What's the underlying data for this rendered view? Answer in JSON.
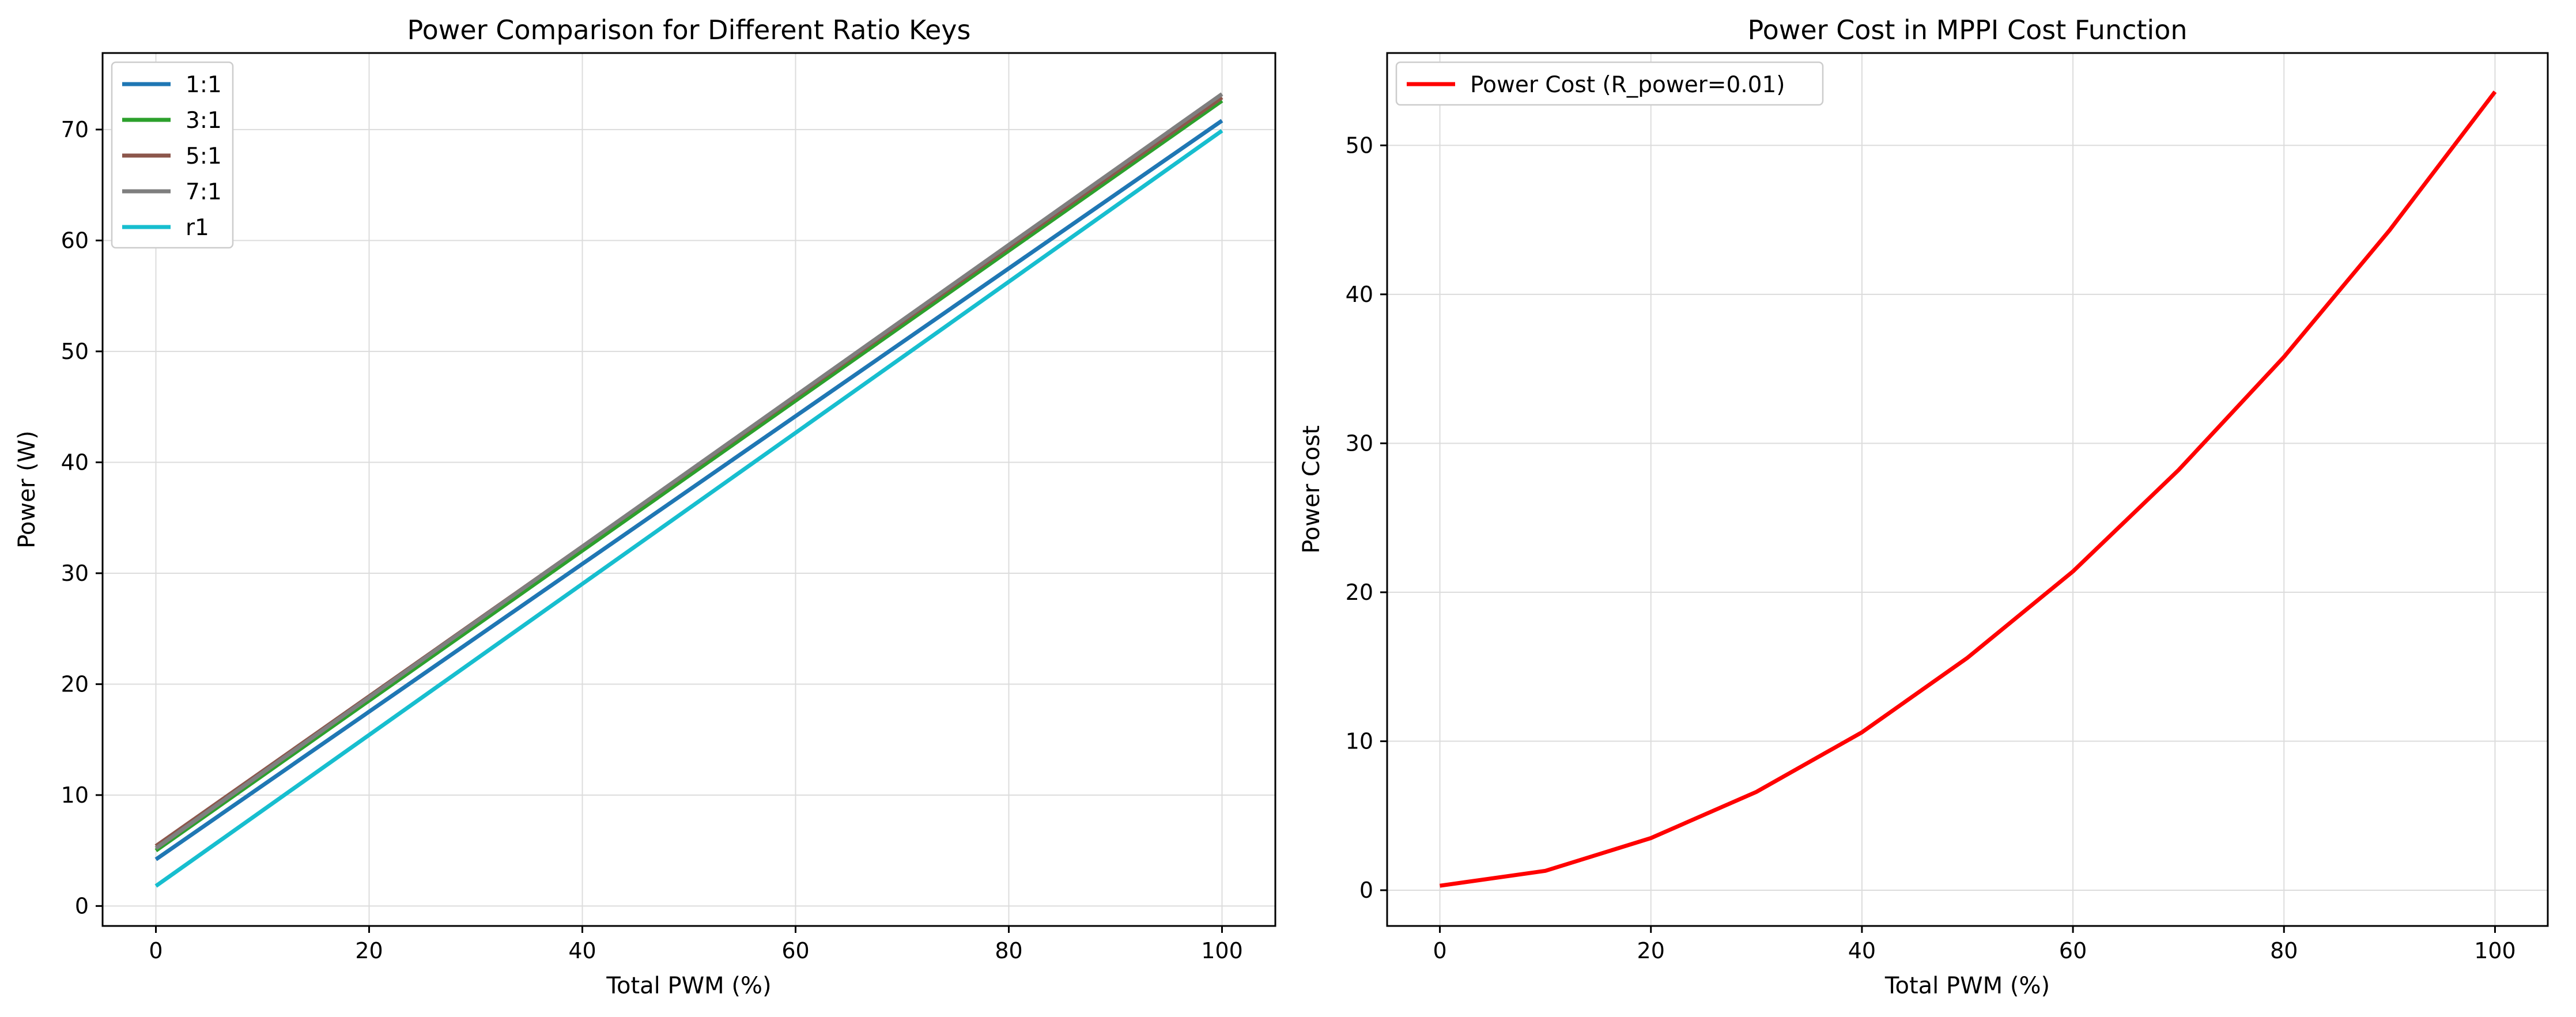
{
  "chart_data": [
    {
      "type": "line",
      "title": "Power Comparison for Different Ratio Keys",
      "xlabel": "Total PWM (%)",
      "ylabel": "Power (W)",
      "xlim": [
        -5,
        105
      ],
      "ylim": [
        -1.8,
        76.9
      ],
      "xticks": [
        0,
        20,
        40,
        60,
        80,
        100
      ],
      "yticks": [
        0,
        10,
        20,
        30,
        40,
        50,
        60,
        70
      ],
      "grid": true,
      "legend_position": "top-left",
      "series": [
        {
          "name": "1:1",
          "color": "#1f77b4",
          "x": [
            0,
            100
          ],
          "y": [
            4.2,
            70.8
          ]
        },
        {
          "name": "3:1",
          "color": "#2ca02c",
          "x": [
            0,
            100
          ],
          "y": [
            5.0,
            72.6
          ]
        },
        {
          "name": "5:1",
          "color": "#8c564b",
          "x": [
            0,
            100
          ],
          "y": [
            5.4,
            72.9
          ]
        },
        {
          "name": "7:1",
          "color": "#7f7f7f",
          "x": [
            0,
            100
          ],
          "y": [
            5.2,
            73.2
          ]
        },
        {
          "name": "r1",
          "color": "#17becf",
          "x": [
            0,
            100
          ],
          "y": [
            1.8,
            69.9
          ]
        }
      ]
    },
    {
      "type": "line",
      "title": "Power Cost in MPPI Cost Function",
      "xlabel": "Total PWM (%)",
      "ylabel": "Power Cost",
      "xlim": [
        -5,
        105
      ],
      "ylim": [
        -2.4,
        56.2
      ],
      "xticks": [
        0,
        20,
        40,
        60,
        80,
        100
      ],
      "yticks": [
        0,
        10,
        20,
        30,
        40,
        50
      ],
      "grid": true,
      "legend_position": "top-left",
      "series": [
        {
          "name": "Power Cost (R_power=0.01)",
          "color": "#ff0000",
          "x": [
            0,
            10,
            20,
            30,
            40,
            50,
            60,
            70,
            80,
            90,
            100
          ],
          "y": [
            0.3,
            1.3,
            3.5,
            6.6,
            10.6,
            15.6,
            21.4,
            28.2,
            35.8,
            44.3,
            53.6
          ]
        }
      ]
    }
  ]
}
